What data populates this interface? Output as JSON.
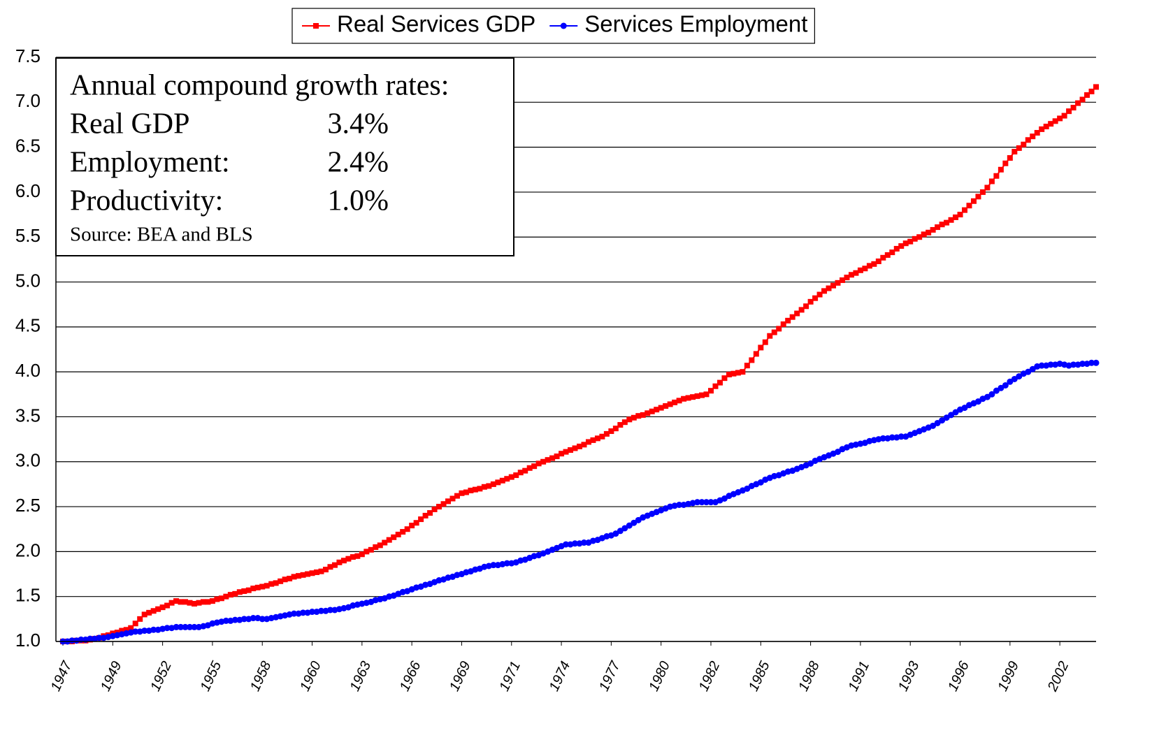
{
  "chart_data": {
    "type": "line",
    "categories": [
      "1947",
      null,
      null,
      null,
      null,
      null,
      null,
      null,
      null,
      null,
      null,
      "1949",
      null,
      null,
      null,
      null,
      null,
      null,
      null,
      null,
      null,
      null,
      "1952",
      null,
      null,
      null,
      null,
      null,
      null,
      null,
      null,
      null,
      null,
      "1955",
      null,
      null,
      null,
      null,
      null,
      null,
      null,
      null,
      null,
      null,
      "1958",
      null,
      null,
      null,
      null,
      null,
      null,
      null,
      null,
      null,
      null,
      "1960",
      null,
      null,
      null,
      null,
      null,
      null,
      null,
      null,
      null,
      null,
      "1963",
      null,
      null,
      null,
      null,
      null,
      null,
      null,
      null,
      null,
      null,
      "1966",
      null,
      null,
      null,
      null,
      null,
      null,
      null,
      null,
      null,
      null,
      "1969",
      null,
      null,
      null,
      null,
      null,
      null,
      null,
      null,
      null,
      null,
      "1971",
      null,
      null,
      null,
      null,
      null,
      null,
      null,
      null,
      null,
      null,
      "1974",
      null,
      null,
      null,
      null,
      null,
      null,
      null,
      null,
      null,
      null,
      "1977",
      null,
      null,
      null,
      null,
      null,
      null,
      null,
      null,
      null,
      null,
      "1980",
      null,
      null,
      null,
      null,
      null,
      null,
      null,
      null,
      null,
      null,
      "1982",
      null,
      null,
      null,
      null,
      null,
      null,
      null,
      null,
      null,
      null,
      "1985",
      null,
      null,
      null,
      null,
      null,
      null,
      null,
      null,
      null,
      null,
      "1988",
      null,
      null,
      null,
      null,
      null,
      null,
      null,
      null,
      null,
      null,
      "1991",
      null,
      null,
      null,
      null,
      null,
      null,
      null,
      null,
      null,
      null,
      "1993",
      null,
      null,
      null,
      null,
      null,
      null,
      null,
      null,
      null,
      null,
      "1996",
      null,
      null,
      null,
      null,
      null,
      null,
      null,
      null,
      null,
      null,
      "1999",
      null,
      null,
      null,
      null,
      null,
      null,
      null,
      null,
      null,
      null,
      "2002",
      null,
      null,
      null,
      null,
      null,
      null,
      null,
      null
    ],
    "series": [
      {
        "name": "Real Services GDP",
        "color": "#ff0000",
        "marker": "square",
        "values": [
          1.0,
          1.0,
          1.0,
          1.01,
          1.01,
          1.01,
          1.02,
          1.03,
          1.04,
          1.06,
          1.07,
          1.09,
          1.1,
          1.12,
          1.13,
          1.15,
          1.2,
          1.25,
          1.3,
          1.32,
          1.34,
          1.36,
          1.38,
          1.4,
          1.43,
          1.45,
          1.44,
          1.44,
          1.43,
          1.42,
          1.43,
          1.44,
          1.44,
          1.45,
          1.47,
          1.48,
          1.5,
          1.52,
          1.53,
          1.55,
          1.56,
          1.57,
          1.59,
          1.6,
          1.61,
          1.62,
          1.64,
          1.65,
          1.67,
          1.69,
          1.7,
          1.72,
          1.73,
          1.74,
          1.75,
          1.76,
          1.77,
          1.78,
          1.8,
          1.83,
          1.85,
          1.88,
          1.9,
          1.92,
          1.94,
          1.95,
          1.97,
          2.0,
          2.02,
          2.05,
          2.07,
          2.1,
          2.13,
          2.16,
          2.19,
          2.22,
          2.25,
          2.29,
          2.32,
          2.36,
          2.4,
          2.43,
          2.47,
          2.5,
          2.53,
          2.56,
          2.59,
          2.62,
          2.65,
          2.66,
          2.68,
          2.69,
          2.7,
          2.72,
          2.73,
          2.75,
          2.77,
          2.79,
          2.81,
          2.83,
          2.85,
          2.88,
          2.9,
          2.93,
          2.95,
          2.98,
          3.0,
          3.02,
          3.04,
          3.06,
          3.09,
          3.11,
          3.13,
          3.15,
          3.17,
          3.19,
          3.22,
          3.24,
          3.26,
          3.28,
          3.31,
          3.34,
          3.37,
          3.41,
          3.44,
          3.47,
          3.49,
          3.51,
          3.52,
          3.54,
          3.56,
          3.58,
          3.6,
          3.62,
          3.64,
          3.66,
          3.68,
          3.7,
          3.71,
          3.72,
          3.73,
          3.74,
          3.75,
          3.79,
          3.84,
          3.88,
          3.93,
          3.97,
          3.98,
          3.99,
          4.0,
          4.07,
          4.13,
          4.2,
          4.27,
          4.33,
          4.4,
          4.44,
          4.48,
          4.53,
          4.57,
          4.61,
          4.65,
          4.69,
          4.73,
          4.78,
          4.82,
          4.86,
          4.9,
          4.93,
          4.96,
          4.99,
          5.02,
          5.05,
          5.08,
          5.1,
          5.13,
          5.15,
          5.18,
          5.2,
          5.23,
          5.27,
          5.3,
          5.33,
          5.37,
          5.4,
          5.43,
          5.45,
          5.48,
          5.5,
          5.53,
          5.55,
          5.58,
          5.61,
          5.64,
          5.66,
          5.69,
          5.72,
          5.75,
          5.8,
          5.85,
          5.9,
          5.95,
          6.0,
          6.05,
          6.12,
          6.18,
          6.25,
          6.32,
          6.38,
          6.45,
          6.49,
          6.53,
          6.58,
          6.62,
          6.66,
          6.7,
          6.73,
          6.76,
          6.79,
          6.82,
          6.85,
          6.9,
          6.94,
          6.99,
          7.03,
          7.08,
          7.12,
          7.17
        ]
      },
      {
        "name": "Services Employment",
        "color": "#0000ff",
        "marker": "circle",
        "values": [
          1.0,
          1.0,
          1.01,
          1.01,
          1.02,
          1.02,
          1.03,
          1.03,
          1.04,
          1.04,
          1.05,
          1.06,
          1.07,
          1.08,
          1.09,
          1.1,
          1.11,
          1.11,
          1.12,
          1.12,
          1.13,
          1.13,
          1.14,
          1.15,
          1.15,
          1.16,
          1.16,
          1.16,
          1.16,
          1.16,
          1.16,
          1.17,
          1.18,
          1.2,
          1.21,
          1.22,
          1.23,
          1.23,
          1.24,
          1.24,
          1.25,
          1.25,
          1.26,
          1.26,
          1.25,
          1.25,
          1.26,
          1.27,
          1.28,
          1.29,
          1.3,
          1.31,
          1.31,
          1.32,
          1.32,
          1.33,
          1.33,
          1.34,
          1.34,
          1.35,
          1.35,
          1.36,
          1.37,
          1.38,
          1.4,
          1.41,
          1.42,
          1.43,
          1.44,
          1.46,
          1.47,
          1.48,
          1.5,
          1.51,
          1.53,
          1.55,
          1.56,
          1.58,
          1.6,
          1.61,
          1.63,
          1.64,
          1.66,
          1.68,
          1.69,
          1.71,
          1.72,
          1.74,
          1.75,
          1.77,
          1.78,
          1.8,
          1.81,
          1.83,
          1.84,
          1.85,
          1.85,
          1.86,
          1.87,
          1.87,
          1.88,
          1.9,
          1.91,
          1.93,
          1.95,
          1.96,
          1.98,
          2.0,
          2.02,
          2.04,
          2.06,
          2.08,
          2.08,
          2.09,
          2.09,
          2.1,
          2.1,
          2.12,
          2.13,
          2.15,
          2.17,
          2.18,
          2.2,
          2.23,
          2.26,
          2.29,
          2.32,
          2.35,
          2.38,
          2.4,
          2.42,
          2.44,
          2.46,
          2.48,
          2.5,
          2.51,
          2.52,
          2.52,
          2.53,
          2.54,
          2.55,
          2.55,
          2.55,
          2.55,
          2.55,
          2.57,
          2.59,
          2.62,
          2.64,
          2.66,
          2.68,
          2.7,
          2.73,
          2.75,
          2.77,
          2.8,
          2.82,
          2.84,
          2.85,
          2.87,
          2.89,
          2.9,
          2.92,
          2.94,
          2.96,
          2.98,
          3.01,
          3.03,
          3.05,
          3.07,
          3.09,
          3.11,
          3.14,
          3.16,
          3.18,
          3.19,
          3.2,
          3.21,
          3.23,
          3.24,
          3.25,
          3.26,
          3.26,
          3.27,
          3.27,
          3.28,
          3.28,
          3.3,
          3.32,
          3.34,
          3.36,
          3.38,
          3.4,
          3.43,
          3.46,
          3.49,
          3.52,
          3.55,
          3.58,
          3.6,
          3.63,
          3.65,
          3.67,
          3.7,
          3.72,
          3.75,
          3.79,
          3.82,
          3.85,
          3.89,
          3.92,
          3.95,
          3.98,
          4.0,
          4.03,
          4.06,
          4.07,
          4.07,
          4.08,
          4.08,
          4.09,
          4.08,
          4.07,
          4.08,
          4.08,
          4.09,
          4.09,
          4.1,
          4.1
        ]
      }
    ],
    "ylim": [
      1,
      7.5
    ],
    "yticks": [
      {
        "value": 1,
        "label": "1.0"
      },
      {
        "value": 1.5,
        "label": "1.5"
      },
      {
        "value": 2,
        "label": "2.0"
      },
      {
        "value": 2.5,
        "label": "2.5"
      },
      {
        "value": 3,
        "label": "3.0"
      },
      {
        "value": 3.5,
        "label": "3.5"
      },
      {
        "value": 4,
        "label": "4.0"
      },
      {
        "value": 4.5,
        "label": "4.5"
      },
      {
        "value": 5,
        "label": "5.0"
      },
      {
        "value": 5.5,
        "label": "5.5"
      },
      {
        "value": 6,
        "label": "6.0"
      },
      {
        "value": 6.5,
        "label": "6.5"
      },
      {
        "value": 7,
        "label": "7.0"
      },
      {
        "value": 7.5,
        "label": "7.5"
      }
    ],
    "grid": true,
    "legend": "top",
    "annotation": {
      "title": "Annual compound growth rates:",
      "rows": [
        {
          "label": "Real GDP",
          "value": "3.4%"
        },
        {
          "label": "Employment:",
          "value": "2.4%"
        },
        {
          "label": "Productivity:",
          "value": "1.0%"
        }
      ],
      "source": "Source: BEA and BLS"
    }
  }
}
